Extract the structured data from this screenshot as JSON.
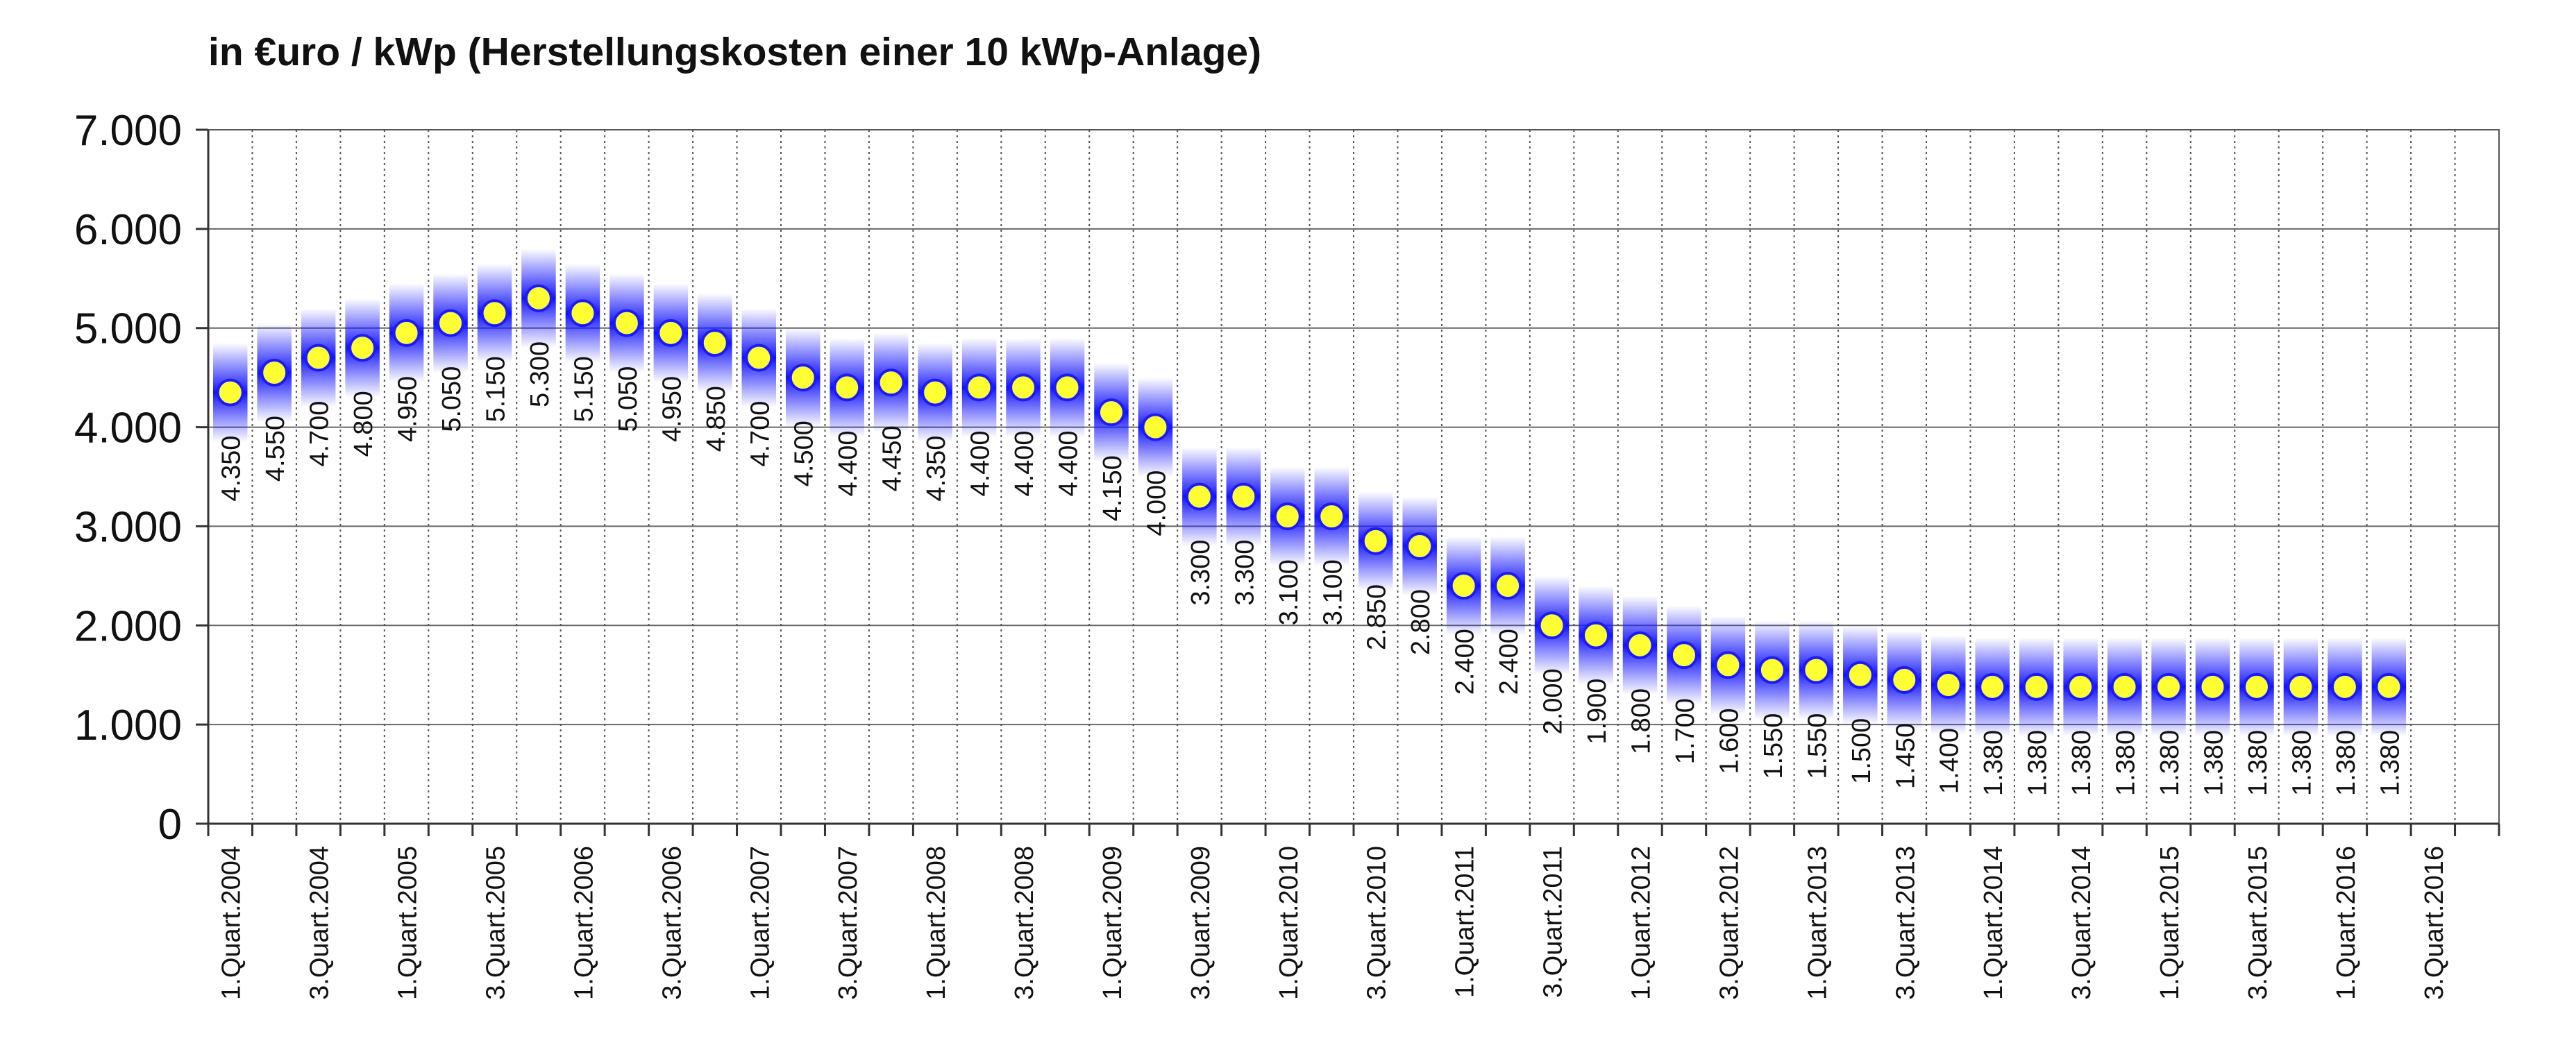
{
  "chart_data": {
    "type": "scatter",
    "title": "in €uro / kWp (Herstellungskosten einer 10 kWp-Anlage)",
    "xlabel": "",
    "ylabel": "",
    "ylim": [
      0,
      7000
    ],
    "y_ticks": [
      "0",
      "1.000",
      "2.000",
      "3.000",
      "4.000",
      "5.000",
      "6.000",
      "7.000"
    ],
    "grid": true,
    "legend": "none",
    "colors": {
      "marker_fill": "#ffff33",
      "marker_stroke": "#1a1aff",
      "band": "#1a1aff",
      "grid": "#666666"
    },
    "x_tick_labels": [
      "1.Quart.2004",
      "3.Quart.2004",
      "1.Quart.2005",
      "3.Quart.2005",
      "1.Quart.2006",
      "3.Quart.2006",
      "1.Quart.2007",
      "3.Quart.2007",
      "1.Quart.2008",
      "3.Quart.2008",
      "1.Quart.2009",
      "3.Quart.2009",
      "1.Quart.2010",
      "3.Quart.2010",
      "1.Quart.2011",
      "3.Quart.2011",
      "1.Quart.2012",
      "3.Quart.2012",
      "1.Quart.2013",
      "3.Quart.2013",
      "1.Quart.2014",
      "3.Quart.2014",
      "1.Quart.2015",
      "3.Quart.2015",
      "1.Quart.2016",
      "3.Quart.2016"
    ],
    "values": [
      4350,
      4550,
      4700,
      4800,
      4950,
      5050,
      5150,
      5300,
      5150,
      5050,
      4950,
      4850,
      4700,
      4500,
      4400,
      4450,
      4350,
      4400,
      4400,
      4400,
      4150,
      4000,
      3300,
      3300,
      3100,
      3100,
      2850,
      2800,
      2400,
      2400,
      2000,
      1900,
      1800,
      1700,
      1600,
      1550,
      1550,
      1500,
      1450,
      1400,
      1380,
      1380,
      1380,
      1380,
      1380,
      1380,
      1380,
      1380,
      1380,
      1380
    ],
    "value_labels": [
      "4.350",
      "4.550",
      "4.700",
      "4.800",
      "4.950",
      "5.050",
      "5.150",
      "5.300",
      "5.150",
      "5.050",
      "4.950",
      "4.850",
      "4.700",
      "4.500",
      "4.400",
      "4.450",
      "4.350",
      "4.400",
      "4.400",
      "4.400",
      "4.150",
      "4.000",
      "3.300",
      "3.300",
      "3.100",
      "3.100",
      "2.850",
      "2.800",
      "2.400",
      "2.400",
      "2.000",
      "1.900",
      "1.800",
      "1.700",
      "1.600",
      "1.550",
      "1.550",
      "1.500",
      "1.450",
      "1.400",
      "1.380",
      "1.380",
      "1.380",
      "1.380",
      "1.380",
      "1.380",
      "1.380",
      "1.380",
      "1.380",
      "1.380"
    ]
  }
}
